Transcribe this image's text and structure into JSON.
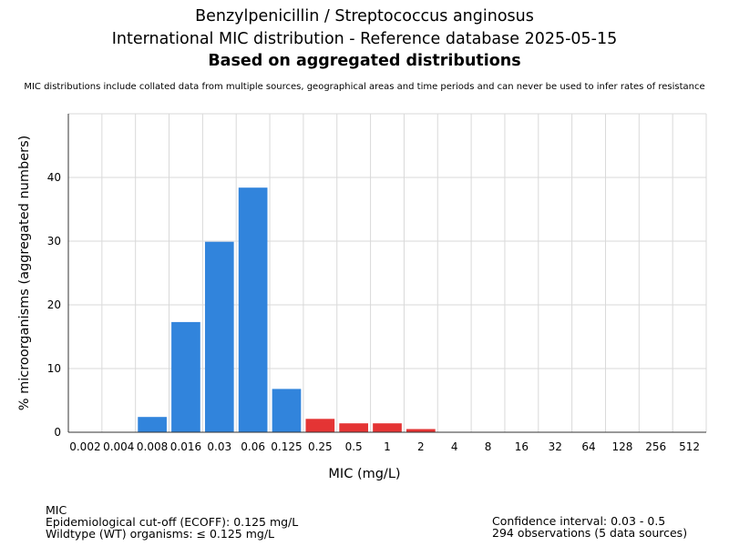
{
  "header": {
    "title_line1": "Benzylpenicillin / Streptococcus anginosus",
    "title_line2": "International MIC distribution - Reference database 2025-05-15",
    "title_line3": "Based on aggregated distributions",
    "subtitle": "MIC distributions include collated data from multiple sources, geographical areas and time periods and can never be used to infer rates of resistance"
  },
  "footer": {
    "left_line1": "MIC",
    "left_line2": "Epidemiological cut-off (ECOFF): 0.125 mg/L",
    "left_line3": "Wildtype (WT) organisms: ≤ 0.125 mg/L",
    "right_line1": "Confidence interval: 0.03 - 0.5",
    "right_line2": "294 observations (5 data sources)"
  },
  "colors": {
    "wildtype": "#3184dc",
    "non_wildtype": "#e43434",
    "grid": "#d9d9d9"
  },
  "chart_data": {
    "type": "bar",
    "xlabel": "MIC (mg/L)",
    "ylabel": "% microorganisms (aggregated numbers)",
    "ylim": [
      0,
      50
    ],
    "yticks": [
      0,
      10,
      20,
      30,
      40
    ],
    "grid": true,
    "categories": [
      "0.002",
      "0.004",
      "0.008",
      "0.016",
      "0.03",
      "0.06",
      "0.125",
      "0.25",
      "0.5",
      "1",
      "2",
      "4",
      "8",
      "16",
      "32",
      "64",
      "128",
      "256",
      "512"
    ],
    "values": [
      0,
      0,
      2.4,
      17.3,
      29.9,
      38.4,
      6.8,
      2.1,
      1.4,
      1.4,
      0.5,
      0,
      0,
      0,
      0,
      0,
      0,
      0,
      0
    ],
    "wildtype": [
      false,
      false,
      true,
      true,
      true,
      true,
      true,
      false,
      false,
      false,
      false,
      false,
      false,
      false,
      false,
      false,
      false,
      false,
      false
    ]
  }
}
